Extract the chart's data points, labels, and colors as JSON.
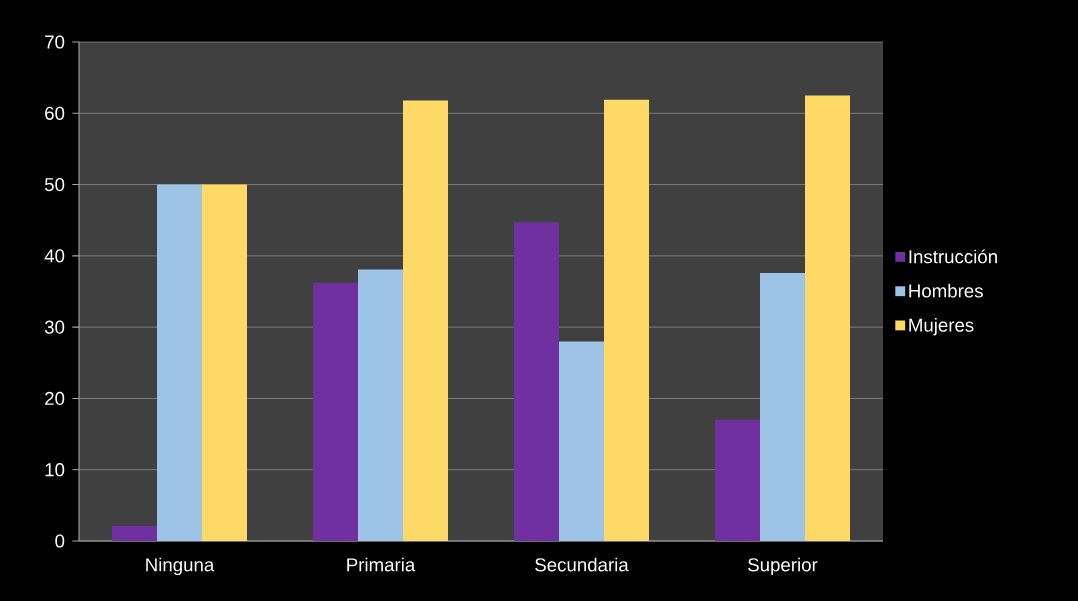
{
  "chart_data": {
    "type": "bar",
    "categories": [
      "Ninguna",
      "Primaria",
      "Secundaria",
      "Superior"
    ],
    "series": [
      {
        "name": "Instrucción",
        "color": "#7030a0",
        "values": [
          2.1,
          36.2,
          44.7,
          17.0
        ]
      },
      {
        "name": "Hombres",
        "color": "#9dc3e6",
        "values": [
          50.0,
          38.1,
          28.0,
          37.6
        ]
      },
      {
        "name": "Mujeres",
        "color": "#ffd966",
        "values": [
          50.0,
          61.8,
          61.9,
          62.5
        ]
      }
    ],
    "ylim": [
      0,
      70
    ],
    "yticks": [
      0,
      10,
      20,
      30,
      40,
      50,
      60,
      70
    ],
    "grid": "y",
    "legend": "right"
  }
}
